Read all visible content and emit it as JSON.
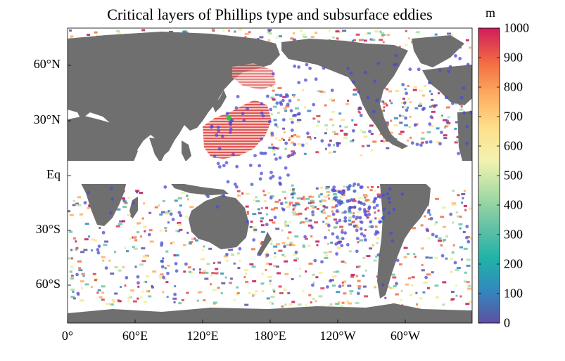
{
  "title": "Critical layers of Phillips type and subsurface eddies",
  "map": {
    "latitude_labels": [
      "60°N",
      "30°N",
      "Eq",
      "30°S",
      "60°S"
    ],
    "longitude_labels": [
      "0°",
      "60°E",
      "120°E",
      "180°E",
      "120°W",
      "60°W"
    ],
    "colors": {
      "land": "#6f6f6f",
      "ocean_background": "#ffffff",
      "eddy_points": "#4a4ad6",
      "phillips_hatch": "#d8313b",
      "marker_green": "#2ecc40"
    },
    "symbol_names": [
      "land-mask",
      "eddy-point-markers",
      "phillips-critical-layer-hatching",
      "equatorial-gap"
    ]
  },
  "colorbar": {
    "unit": "m",
    "min": 0,
    "max": 1000,
    "tick_labels": [
      "1000",
      "900",
      "800",
      "700",
      "600",
      "500",
      "400",
      "300",
      "200",
      "100",
      "0"
    ],
    "ticks": [
      1000,
      900,
      800,
      700,
      600,
      500,
      400,
      300,
      200,
      100,
      0
    ],
    "colormap": [
      "#5e4fa2",
      "#3288bd",
      "#66c2a5",
      "#abdda4",
      "#e6f598",
      "#fee08b",
      "#fdae61",
      "#f46d43",
      "#d53e4f",
      "#c2185b"
    ]
  }
}
